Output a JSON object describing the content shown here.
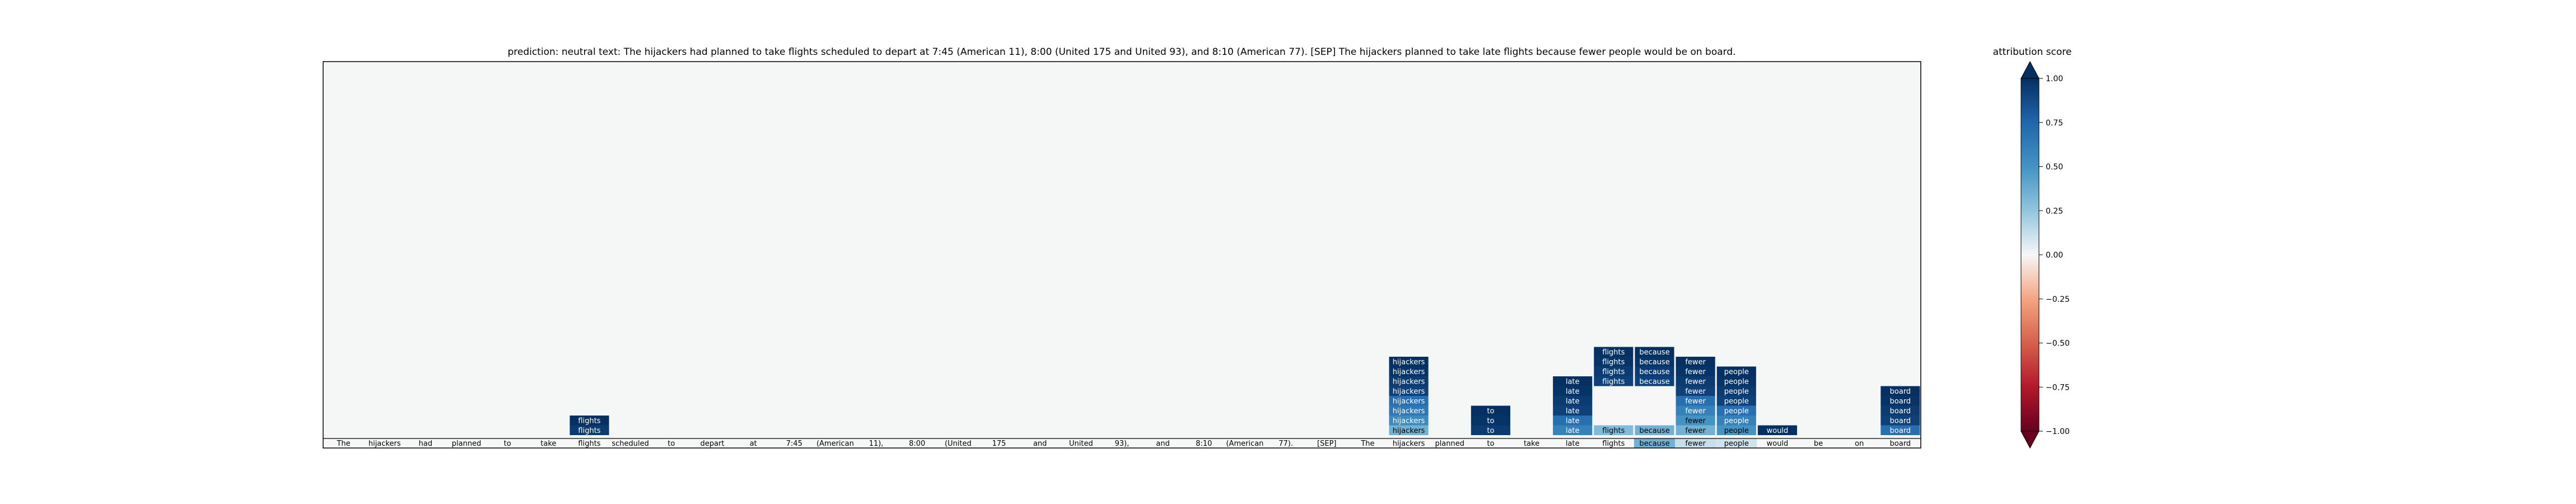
{
  "chart_data": {
    "type": "heatmap",
    "title": "prediction:  neutral     text:  The hijackers had planned to take flights scheduled to depart at 7:45 (American 11), 8:00 (United 175 and United 93), and 8:10 (American 77). [SEP] The hijackers planned to take late flights because fewer people would be on board.",
    "tokens": [
      "The",
      "hijackers",
      "had",
      "planned",
      "to",
      "take",
      "flights",
      "scheduled",
      "to",
      "depart",
      "at",
      "7:45",
      "(American",
      "11),",
      "8:00",
      "(United",
      "175",
      "and",
      "United",
      "93),",
      "and",
      "8:10",
      "(American",
      "77).",
      "[SEP]",
      "The",
      "hijackers",
      "planned",
      "to",
      "take",
      "late",
      "flights",
      "because",
      "fewer",
      "people",
      "would",
      "be",
      "on",
      "board"
    ],
    "baseline_scores": [
      0,
      0,
      0,
      0,
      0,
      0,
      0,
      0,
      0,
      0,
      0,
      0,
      0,
      0,
      0,
      0,
      0,
      0,
      0,
      0,
      0,
      0,
      0,
      0,
      0,
      0,
      0,
      0,
      0,
      0,
      0,
      0,
      0.35,
      0.12,
      0.1,
      0,
      0,
      0,
      0
    ],
    "stacks": [
      {
        "token_index": 6,
        "label": "flights",
        "scores": [
          1.0,
          0.95
        ]
      },
      {
        "token_index": 26,
        "label": "hijackers",
        "scores": [
          1.0,
          0.98,
          0.95,
          0.92,
          0.7,
          0.65,
          0.55,
          0.35
        ]
      },
      {
        "token_index": 28,
        "label": "to",
        "scores": [
          1.0,
          0.98,
          0.95
        ]
      },
      {
        "token_index": 30,
        "label": "late",
        "scores": [
          1.0,
          0.98,
          0.95,
          0.92,
          0.7,
          0.6
        ]
      },
      {
        "token_index": 31,
        "label": "flights",
        "scores": [
          1.0,
          0.98,
          0.95,
          0.92,
          0.0,
          0.0,
          0.0,
          0.0,
          0.3
        ]
      },
      {
        "token_index": 32,
        "label": "because",
        "scores": [
          1.0,
          0.98,
          0.95,
          0.92,
          0.0,
          0.0,
          0.0,
          0.0,
          0.35
        ]
      },
      {
        "token_index": 33,
        "label": "fewer",
        "scores": [
          1.0,
          0.98,
          0.95,
          0.92,
          0.7,
          0.6,
          0.5,
          0.35
        ]
      },
      {
        "token_index": 34,
        "label": "people",
        "scores": [
          1.0,
          0.98,
          0.95,
          0.92,
          0.7,
          0.6,
          0.5
        ]
      },
      {
        "token_index": 35,
        "label": "would",
        "scores": [
          1.0
        ]
      },
      {
        "token_index": 38,
        "label": "board",
        "scores": [
          1.0,
          0.98,
          0.95,
          0.92,
          0.7
        ]
      }
    ],
    "colorbar": {
      "label": "attribution score",
      "range": [
        -1.0,
        1.0
      ],
      "ticks": [
        1.0,
        0.75,
        0.5,
        0.25,
        0.0,
        -0.25,
        -0.5,
        -0.75,
        -1.0
      ],
      "tick_labels": [
        "1.00",
        "0.75",
        "0.50",
        "0.25",
        "0.00",
        "−0.25",
        "−0.50",
        "−0.75",
        "−1.00"
      ],
      "colormap": "RdBu"
    },
    "colors": {
      "background": "#f5f7f7",
      "frame": "#000000",
      "neg_strong": "#67001f",
      "pos_strong": "#053061"
    }
  }
}
